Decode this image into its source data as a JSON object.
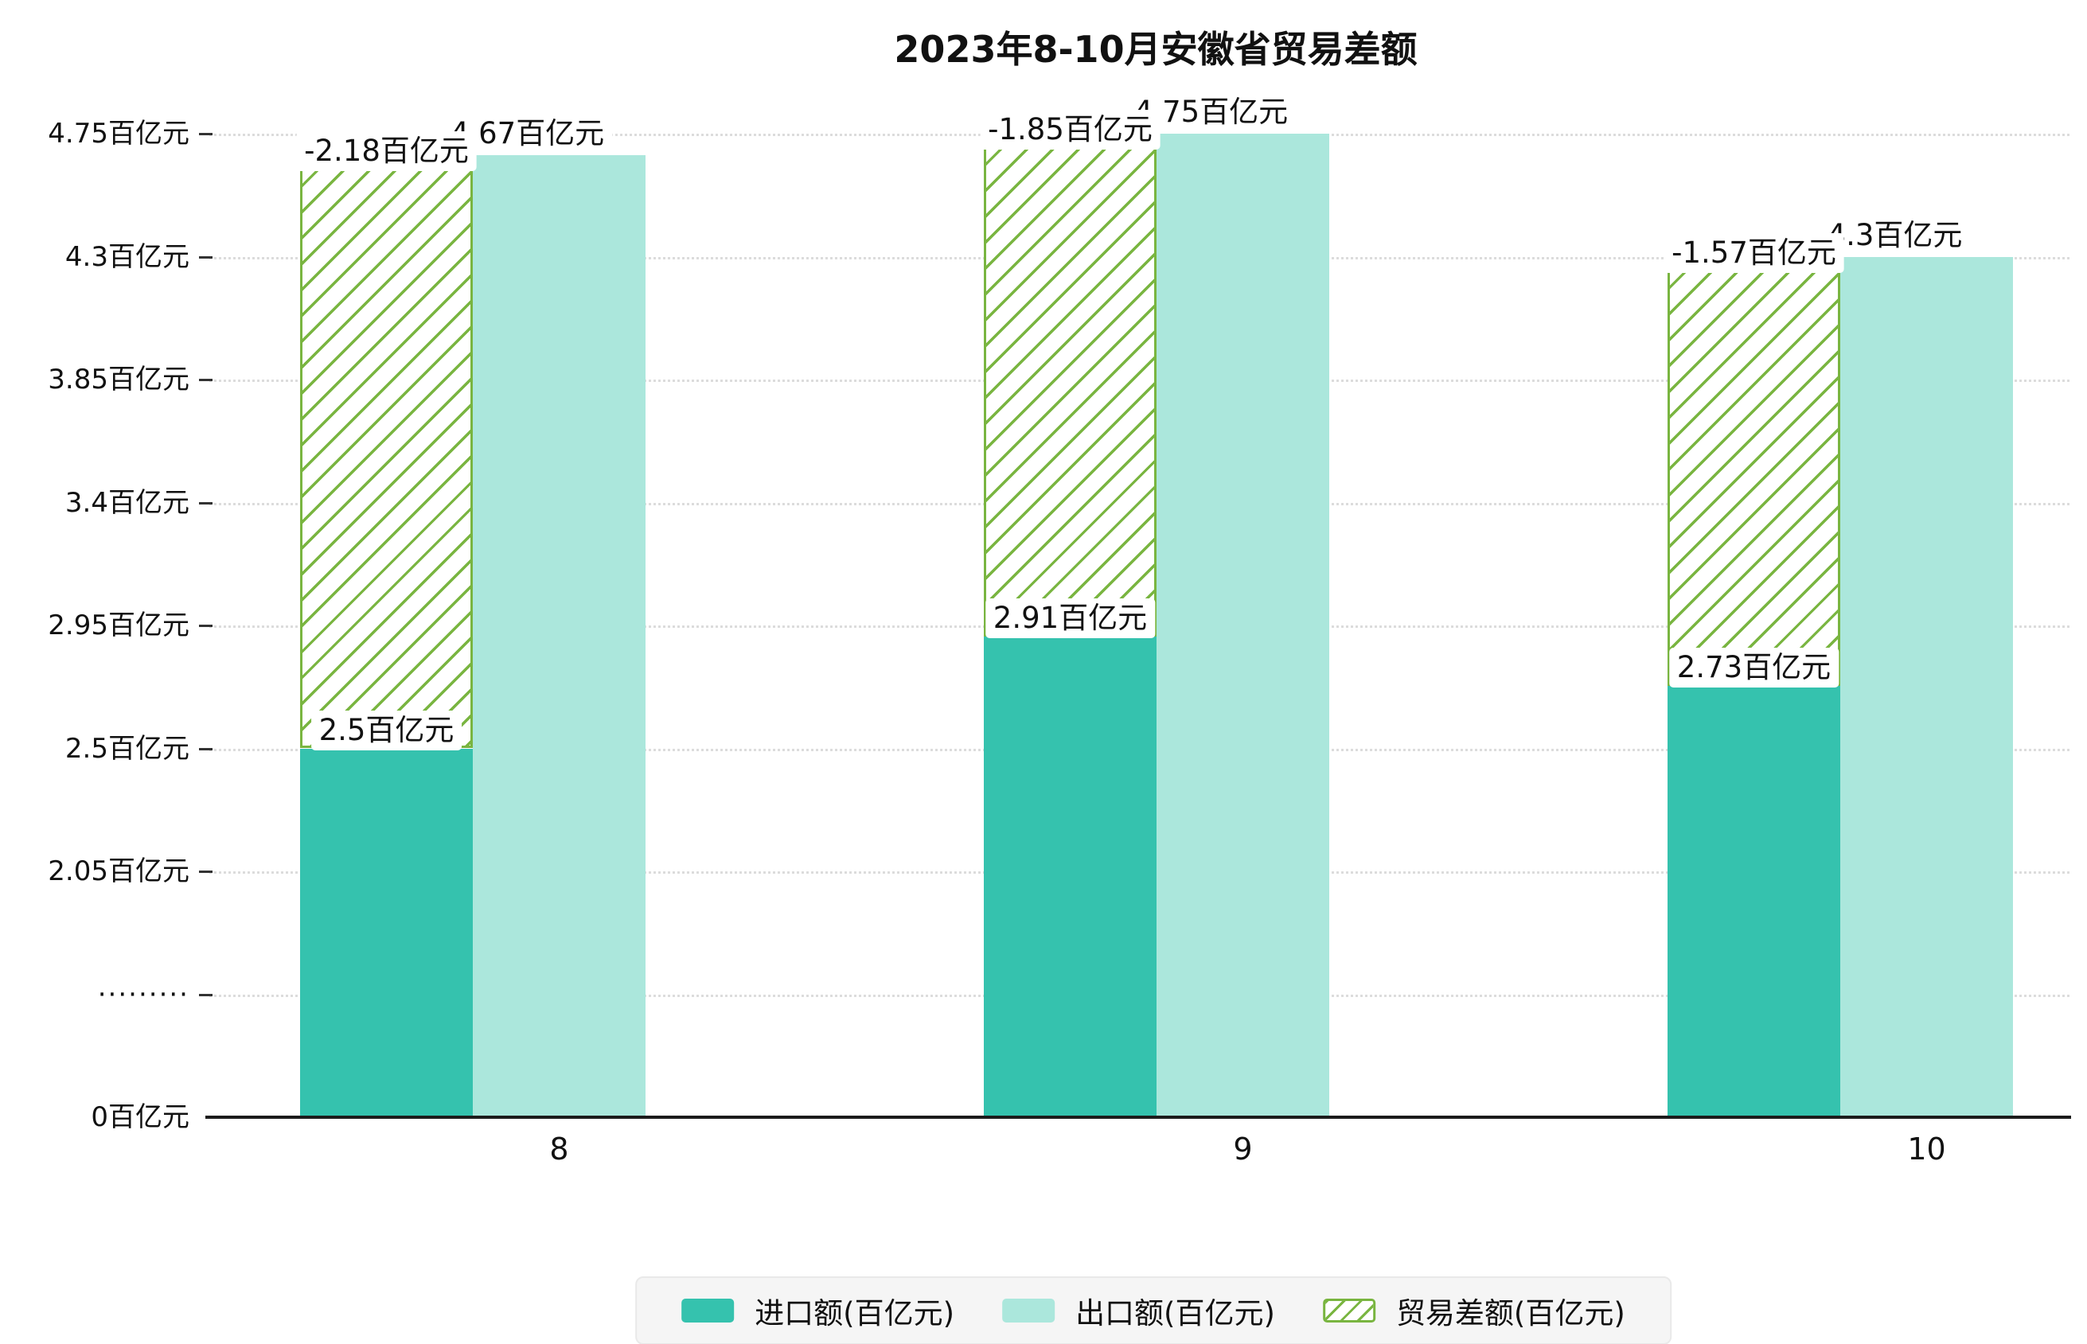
{
  "title": "2023年8-10月安徽省贸易差额",
  "colors": {
    "import_bar": "#35c2ae",
    "export_bar": "#abe7dc",
    "balance_hatch": "#79b540",
    "grid": "#dcdcdc",
    "axis": "#1c1c1c",
    "label_bg": "#ffffff",
    "legend_bg": "#f5f5f5"
  },
  "chart_data": {
    "type": "bar",
    "categories": [
      "8",
      "9",
      "10"
    ],
    "series": [
      {
        "role": "import",
        "name": "进口额(百亿元)",
        "values": [
          2.5,
          2.91,
          2.73
        ],
        "labels": [
          "2.5百亿元",
          "2.91百亿元",
          "2.73百亿元"
        ]
      },
      {
        "role": "export",
        "name": "出口额(百亿元)",
        "values": [
          4.67,
          4.75,
          4.3
        ],
        "labels": [
          "4.67百亿元",
          "4.75百亿元",
          "4.3百亿元"
        ]
      },
      {
        "role": "balance",
        "name": "贸易差额(百亿元)",
        "values": [
          -2.18,
          -1.85,
          -1.57
        ],
        "labels": [
          "-2.18百亿元",
          "-1.85百亿元",
          "-1.57百亿元"
        ],
        "render": "hatched span between import top and export top"
      }
    ],
    "title": "2023年8-10月安徽省贸易差额",
    "xlabel": "",
    "ylabel": "",
    "ylim": [
      0,
      4.75
    ],
    "y_ticks": [
      "0百亿元",
      "·········",
      "2.05百亿元",
      "2.5百亿元",
      "2.95百亿元",
      "3.4百亿元",
      "3.85百亿元",
      "4.3百亿元",
      "4.75百亿元"
    ],
    "axis_break_after_first_tick": true,
    "grid": "dotted horizontal",
    "legend_position": "bottom"
  },
  "legend": {
    "items": [
      {
        "label": "进口额(百亿元)",
        "swatch": "solid-import"
      },
      {
        "label": "出口额(百亿元)",
        "swatch": "solid-export"
      },
      {
        "label": "贸易差额(百亿元)",
        "swatch": "hatched-balance"
      }
    ]
  }
}
